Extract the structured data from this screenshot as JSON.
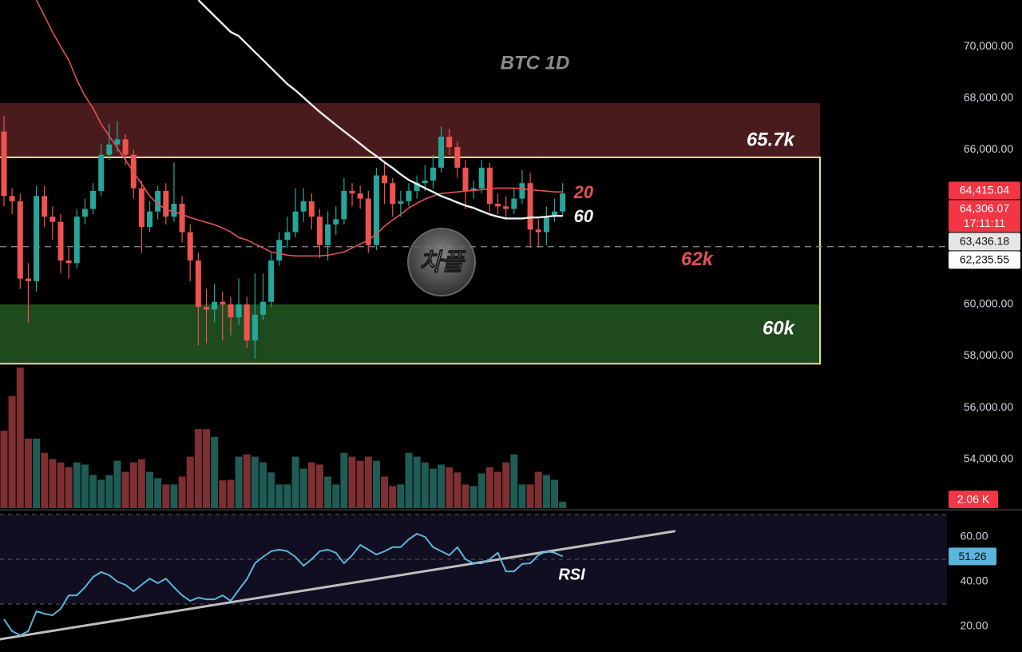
{
  "chart_data": {
    "type": "candlestick",
    "title": "BTC 1D",
    "colors": {
      "up": "#26a69a",
      "down": "#ef5350",
      "vol_up": "#1f5c55",
      "vol_down": "#7d2f31"
    },
    "open": [
      66700,
      64200,
      64000,
      61000,
      60900,
      64200,
      63400,
      63200,
      61700,
      61600,
      63400,
      63700,
      64400,
      65800,
      66200,
      66400,
      65800,
      64500,
      63000,
      63600,
      64400,
      63400,
      63900,
      62800,
      61700,
      59900,
      59800,
      60100,
      60000,
      59500,
      60000,
      58600,
      59600,
      60100,
      61700,
      62500,
      62800,
      63600,
      64000,
      63400,
      62300,
      63100,
      63300,
      64400,
      64300,
      64100,
      62300,
      65000,
      64700,
      63900,
      64000,
      64400,
      64700,
      64800,
      65300,
      66500,
      66100,
      65300,
      64400,
      64500,
      65300,
      63900,
      63800,
      63700,
      64100,
      64700,
      62900,
      62800,
      63400,
      63600
    ],
    "high": [
      67300,
      64500,
      64300,
      61600,
      64600,
      64600,
      63800,
      63500,
      62200,
      63700,
      64100,
      64700,
      66200,
      67000,
      67100,
      66600,
      66000,
      64800,
      64000,
      64600,
      64700,
      65500,
      64200,
      63100,
      62000,
      60600,
      60800,
      60500,
      60300,
      61000,
      60300,
      61200,
      61200,
      62000,
      62800,
      63400,
      64500,
      64500,
      64300,
      63700,
      63600,
      63800,
      64900,
      64700,
      64600,
      64400,
      65300,
      65500,
      64900,
      64400,
      64700,
      65000,
      65400,
      65800,
      66900,
      66800,
      66300,
      65600,
      64800,
      65600,
      65500,
      64300,
      64200,
      64500,
      65200,
      65100,
      63300,
      63800,
      64100,
      64700
    ],
    "low": [
      63800,
      63500,
      60600,
      59300,
      60500,
      63000,
      62500,
      61200,
      61000,
      61400,
      63100,
      63500,
      64200,
      65600,
      65900,
      65400,
      64100,
      62000,
      62800,
      63300,
      63100,
      63200,
      62400,
      60900,
      58400,
      58500,
      59300,
      58600,
      58800,
      59200,
      58300,
      57900,
      59400,
      59900,
      61500,
      62200,
      62600,
      63200,
      62900,
      61800,
      61700,
      62700,
      63100,
      63800,
      63700,
      62000,
      62100,
      63900,
      63400,
      63400,
      63800,
      64100,
      64400,
      64500,
      65100,
      65800,
      64900,
      63700,
      64100,
      64300,
      63600,
      63500,
      63300,
      63500,
      63900,
      62200,
      62200,
      62300,
      63200,
      63400
    ],
    "close": [
      64200,
      64000,
      61000,
      60900,
      64200,
      63400,
      63200,
      61700,
      61600,
      63400,
      63700,
      64400,
      65800,
      66200,
      66400,
      65800,
      64500,
      63000,
      63600,
      64400,
      63400,
      63900,
      62800,
      61700,
      59900,
      59800,
      60100,
      60000,
      59500,
      60000,
      58600,
      59600,
      60100,
      61700,
      62500,
      62800,
      63600,
      64000,
      63400,
      62300,
      63100,
      63300,
      64400,
      64300,
      64100,
      62300,
      65000,
      64700,
      63900,
      64000,
      64400,
      64700,
      64800,
      65300,
      66500,
      66100,
      65300,
      64400,
      64500,
      65300,
      63900,
      63800,
      63700,
      64100,
      64700,
      62900,
      62800,
      63400,
      63600,
      64300
    ],
    "series": [
      {
        "name": "20",
        "color": "#e05252",
        "values": [
          null,
          null,
          null,
          null,
          71800,
          71180,
          70560,
          70000,
          69470,
          68700,
          68080,
          67610,
          66990,
          66530,
          66060,
          65600,
          65130,
          64670,
          64200,
          63890,
          63680,
          63580,
          63490,
          63370,
          63270,
          63180,
          63090,
          62960,
          62810,
          62590,
          62500,
          62340,
          62190,
          62030,
          61970,
          61910,
          61880,
          61880,
          61880,
          61880,
          61910,
          61970,
          62030,
          62190,
          62340,
          62500,
          62720,
          63030,
          63270,
          63490,
          63740,
          63920,
          64080,
          64200,
          64300,
          64330,
          64360,
          64390,
          64420,
          64450,
          64480,
          64510,
          64510,
          64510,
          64480,
          64450,
          64420,
          64390,
          64360,
          64360
        ]
      },
      {
        "name": "60",
        "color": "#f0f0f0",
        "values": [
          null,
          null,
          null,
          null,
          null,
          null,
          null,
          null,
          null,
          null,
          null,
          null,
          null,
          null,
          null,
          null,
          null,
          null,
          null,
          null,
          null,
          null,
          null,
          null,
          71800,
          71490,
          71180,
          70870,
          70560,
          70400,
          70090,
          69780,
          69470,
          69160,
          68850,
          68540,
          68300,
          68020,
          67740,
          67460,
          67210,
          66960,
          66710,
          66470,
          66220,
          65970,
          65750,
          65510,
          65290,
          65040,
          64820,
          64670,
          64510,
          64360,
          64200,
          64080,
          63950,
          63830,
          63740,
          63610,
          63490,
          63400,
          63330,
          63330,
          63330,
          63370,
          63370,
          63400,
          63430,
          63430
        ]
      }
    ],
    "ylim": [
      52100,
      71800
    ],
    "yticks": [
      {
        "value": 54000,
        "label": "54,000.00"
      },
      {
        "value": 56000,
        "label": "56,000.00"
      },
      {
        "value": 58000,
        "label": "58,000.00"
      },
      {
        "value": 60000,
        "label": "60,000.00"
      },
      {
        "value": 66000,
        "label": "66,000.00"
      },
      {
        "value": 68000,
        "label": "68,000.00"
      },
      {
        "value": 70000,
        "label": "70,000.00"
      }
    ],
    "zones": [
      {
        "label": "65.7k",
        "range": [
          65700,
          67800
        ],
        "color": "#4a1b1d"
      },
      {
        "label": "60k",
        "range": [
          57700,
          60000
        ],
        "color": "#1f4a1d"
      }
    ],
    "range_box": {
      "range": [
        57700,
        65700
      ],
      "color": "#e8e27a"
    },
    "level": {
      "value": 62235.55,
      "label": "62k",
      "color": "#e05252"
    },
    "price_labels": [
      {
        "value": 64415.04,
        "label": "64,415.04",
        "bg": "#f23645",
        "fg": "#ffffff"
      },
      {
        "value": 64306.07,
        "label": "64,306.07",
        "sub": "17:11:11",
        "bg": "#f23645",
        "fg": "#ffffff"
      },
      {
        "value": 63436.18,
        "label": "63,436.18",
        "bg": "#e6e6e6",
        "fg": "#111111"
      },
      {
        "value": 62235.55,
        "label": "62,235.55",
        "bg": "#ffffff",
        "fg": "#111111"
      }
    ],
    "volume": {
      "values": [
        24.5,
        35.5,
        44.5,
        22,
        22,
        17.5,
        15.5,
        14.5,
        13,
        14.5,
        13.8,
        10.5,
        9,
        10.5,
        15,
        11.5,
        14.5,
        15.5,
        11.5,
        9.5,
        7.5,
        7.5,
        10,
        16.3,
        25,
        25,
        22.5,
        8.8,
        9,
        16.3,
        17,
        16.3,
        14.5,
        11.3,
        7.5,
        7.5,
        16.3,
        12.5,
        14.5,
        13.8,
        10,
        7.5,
        17.5,
        16.3,
        15,
        16.3,
        15,
        10,
        7,
        7.5,
        17.5,
        16.3,
        14.5,
        12.5,
        13.8,
        13,
        11.3,
        7.5,
        7,
        11,
        13,
        11.5,
        14.5,
        17,
        7.5,
        7.5,
        11.5,
        10.5,
        9,
        2.06
      ],
      "ylim": [
        0,
        45
      ],
      "last": {
        "value": 2.06,
        "label": "2.06 K"
      }
    },
    "rsi": {
      "name": "RSI",
      "color": "#5ab4dc",
      "values": [
        23.2,
        17.9,
        16.1,
        17.9,
        26.8,
        25.7,
        25,
        27.9,
        33.9,
        33.9,
        37.5,
        42.1,
        44.3,
        42.9,
        40,
        38.6,
        35.7,
        38.6,
        41.4,
        39.3,
        41.4,
        37.5,
        33.9,
        31.4,
        32.9,
        32.1,
        32.1,
        33.9,
        31.4,
        36.4,
        41.1,
        48.2,
        51.1,
        53.6,
        54.3,
        53.6,
        51.1,
        47.1,
        50,
        53.6,
        54.3,
        52.9,
        48.2,
        51.8,
        56.4,
        54.3,
        52.1,
        53.6,
        55.4,
        55.4,
        58.9,
        61.4,
        60,
        55.4,
        53.6,
        51.8,
        55.4,
        50,
        48.2,
        48.2,
        50,
        52.9,
        44.6,
        44.6,
        47.9,
        48.2,
        51.8,
        53.6,
        52.9,
        51.26
      ],
      "ylim": [
        8.6,
        69.6
      ],
      "yticks": [
        {
          "value": 20,
          "label": "20.00"
        },
        {
          "value": 40,
          "label": "40.00"
        },
        {
          "value": 60,
          "label": "60.00"
        }
      ],
      "levels": [
        30,
        50,
        70
      ],
      "last": {
        "value": 51.26,
        "label": "51.26"
      },
      "trendline": {
        "x": [
          -0.5,
          82.8
        ],
        "values": [
          14.3,
          62.5
        ],
        "color": "#bdbdbd"
      }
    },
    "watermark": "차플"
  }
}
